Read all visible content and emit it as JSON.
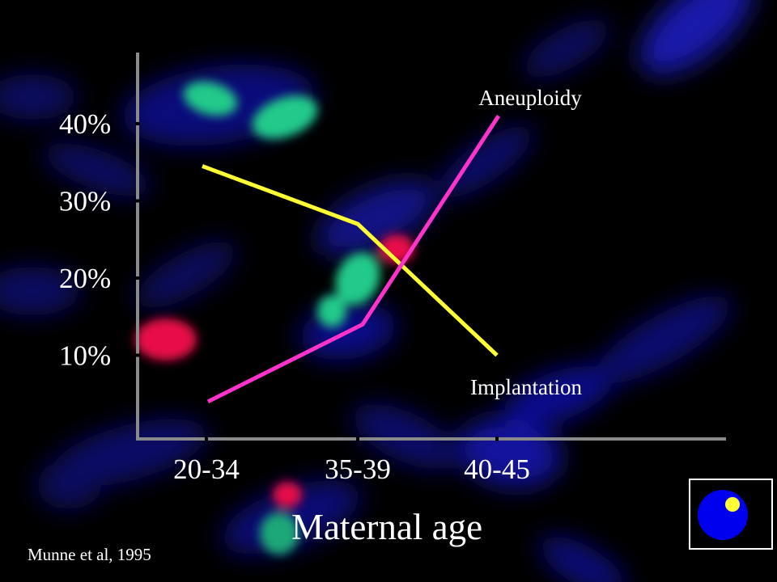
{
  "slide": {
    "citation": "Munne et al, 1995"
  },
  "colors": {
    "background": "#000000",
    "axis": "#8a8a8a",
    "text": "#ffffff",
    "aneuploidy": "#ff33cc",
    "implantation": "#ffff33",
    "logo_circle": "#0000ee",
    "logo_dot": "#ffff33"
  },
  "logo": {
    "icon": "embryo-cell-icon"
  },
  "chart_data": {
    "type": "line",
    "title": "",
    "xlabel": "Maternal age",
    "ylabel": "",
    "categories": [
      "20-34",
      "35-39",
      "40-45"
    ],
    "y_ticks": [
      {
        "value": 40,
        "label": "40%"
      },
      {
        "value": 30,
        "label": "30%"
      },
      {
        "value": 20,
        "label": "20%"
      },
      {
        "value": 10,
        "label": "10%"
      }
    ],
    "ylim": [
      0,
      50
    ],
    "grid": false,
    "legend": "inline labels at line ends",
    "series": [
      {
        "name": "Implantation",
        "values": [
          34.5,
          27,
          10
        ],
        "color": "#ffff33"
      },
      {
        "name": "Aneuploidy",
        "values": [
          4,
          14,
          41
        ],
        "color": "#ff33cc"
      }
    ]
  }
}
